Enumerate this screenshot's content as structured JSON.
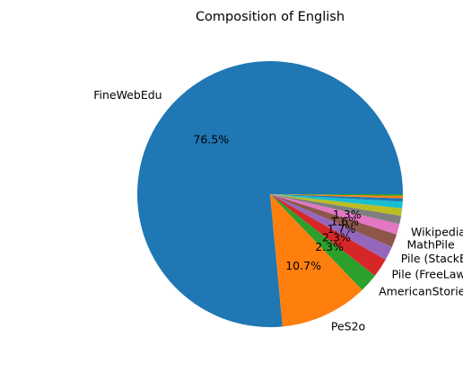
{
  "chart_data": {
    "type": "pie",
    "title": "Composition of English",
    "slices": [
      {
        "label": "FineWebEdu",
        "value": 76.5,
        "pct_text": "76.5%",
        "color": "#1f77b4"
      },
      {
        "label": "PeS2o",
        "value": 10.7,
        "pct_text": "10.7%",
        "color": "#ff7f0e"
      },
      {
        "label": "AmericanStories",
        "value": 2.3,
        "pct_text": "2.3%",
        "color": "#2ca02c"
      },
      {
        "label": "Pile (FreeLaw)",
        "value": 2.3,
        "pct_text": "2.3%",
        "color": "#d62728"
      },
      {
        "label": "Pile (StackExchange)",
        "value": 1.7,
        "pct_text": "1.7%",
        "color": "#9467bd"
      },
      {
        "label": "MathPile",
        "value": 1.6,
        "pct_text": "1.6%",
        "color": "#8c564b"
      },
      {
        "label": "Wikipedia",
        "value": 1.3,
        "pct_text": "1.3%",
        "color": "#e377c2"
      },
      {
        "label": "",
        "value": 1.0,
        "pct_text": "",
        "color": "#7f7f7f"
      },
      {
        "label": "",
        "value": 0.9,
        "pct_text": "",
        "color": "#bcbd22"
      },
      {
        "label": "",
        "value": 0.8,
        "pct_text": "",
        "color": "#17becf"
      },
      {
        "label": "",
        "value": 0.4,
        "pct_text": "",
        "color": "#1f77b4"
      },
      {
        "label": "",
        "value": 0.3,
        "pct_text": "",
        "color": "#ff7f0e"
      },
      {
        "label": "",
        "value": 0.2,
        "pct_text": "",
        "color": "#2ca02c"
      }
    ],
    "start_angle_deg": 0,
    "direction": "counterclockwise"
  }
}
